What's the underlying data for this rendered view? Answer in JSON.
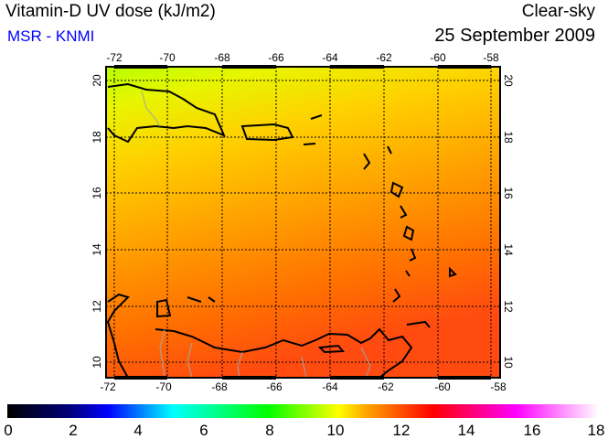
{
  "header": {
    "title": "Vitamin-D UV dose (kJ/m2)",
    "source": "MSR - KNMI",
    "condition": "Clear-sky",
    "date": "25 September 2009"
  },
  "map": {
    "lon_ticks": [
      "-72",
      "-70",
      "-68",
      "-66",
      "-64",
      "-62",
      "-60",
      "-58"
    ],
    "lat_ticks": [
      "20",
      "18",
      "16",
      "14",
      "12",
      "10"
    ],
    "lon_range": [
      -72.3,
      -57.8
    ],
    "lat_range": [
      9.5,
      20.5
    ]
  },
  "colorbar": {
    "ticks": [
      "0",
      "2",
      "4",
      "6",
      "8",
      "10",
      "12",
      "14",
      "16",
      "18"
    ],
    "range": [
      0,
      18
    ],
    "colors": [
      "#000000",
      "#000080",
      "#0000ff",
      "#00ffff",
      "#00ff00",
      "#ffff00",
      "#ff0000",
      "#ff00ff",
      "#ffffff"
    ]
  }
}
